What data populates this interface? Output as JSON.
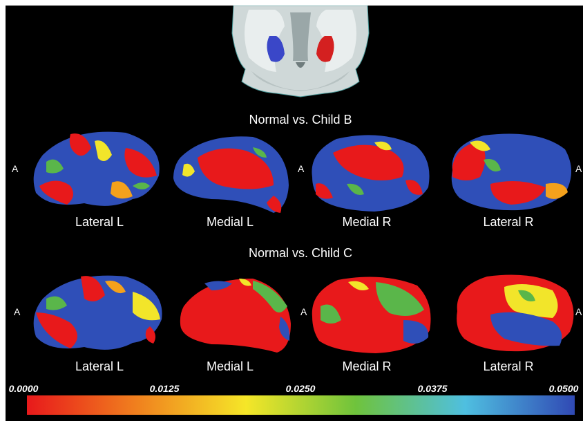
{
  "panels": [
    {
      "title": "Normal vs. Child B",
      "views": [
        "Lateral L",
        "Medial L",
        "Medial R",
        "Lateral R"
      ]
    },
    {
      "title": "Normal vs. Child C",
      "views": [
        "Lateral L",
        "Medial L",
        "Medial R",
        "Lateral R"
      ]
    }
  ],
  "anterior_marker": "A",
  "colorbar": {
    "ticks": [
      "0.0000",
      "0.0125",
      "0.0250",
      "0.0375",
      "0.0500"
    ],
    "min": 0.0,
    "max": 0.05,
    "colors": [
      "#e8191b",
      "#f0801e",
      "#f5e628",
      "#6fc33c",
      "#4fbfe0",
      "#3049b4"
    ]
  },
  "colors": {
    "significant_red": "#e8191b",
    "orange": "#f4a11c",
    "yellow": "#f2e52a",
    "green": "#5ab64a",
    "blue": "#2f4fb8",
    "left_structure_blue": "#3a47c8",
    "right_structure_red": "#d42020"
  }
}
